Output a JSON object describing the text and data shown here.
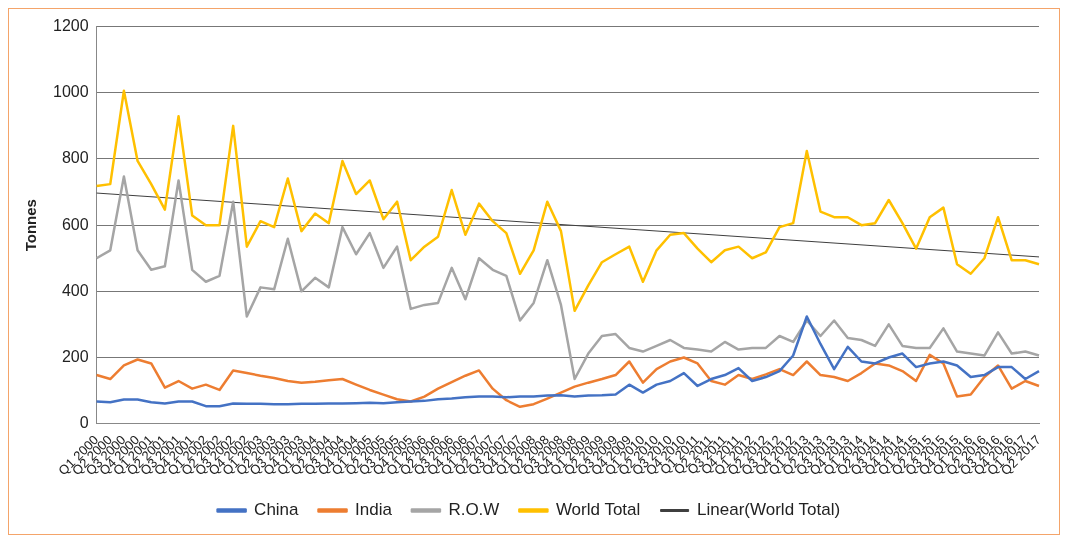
{
  "chart_data": {
    "type": "line",
    "ylabel": "Tonnes",
    "categories": [
      "Q1 2000",
      "Q2 2000",
      "Q3 2000",
      "Q4 2000",
      "Q1 2001",
      "Q2 2001",
      "Q3 2001",
      "Q4 2001",
      "Q1 2002",
      "Q2 2002",
      "Q3 2002",
      "Q4 2002",
      "Q1 2003",
      "Q2 2003",
      "Q3 2003",
      "Q4 2003",
      "Q1 2004",
      "Q2 2004",
      "Q3 2004",
      "Q4 2004",
      "Q1 2005",
      "Q2 2005",
      "Q3 2005",
      "Q4 2005",
      "Q1 2006",
      "Q2 2006",
      "Q3 2006",
      "Q4 2006",
      "Q1 2007",
      "Q2 2007",
      "Q3 2007",
      "Q4 2007",
      "Q1 2008",
      "Q2 2008",
      "Q3 2008",
      "Q4 2008",
      "Q1 2009",
      "Q2 2009",
      "Q3 2009",
      "Q4 2009",
      "Q1 2010",
      "Q2 2010",
      "Q3 2010",
      "Q4 2010",
      "Q1 2011",
      "Q2 2011",
      "Q3 2011",
      "Q4 2011",
      "Q1 2012",
      "Q2 2012",
      "Q3 2012",
      "Q4 2012",
      "Q1 2013",
      "Q2 2013",
      "Q3 2013",
      "Q4 2013",
      "Q1 2014",
      "Q2 2014",
      "Q3 2014",
      "Q4 2014",
      "Q1 2015",
      "Q2 2015",
      "Q3 2015",
      "Q4 2015",
      "Q1 2016",
      "Q2 2016",
      "Q3 2016",
      "Q4 2016",
      "Q1 2017",
      "Q2 2017"
    ],
    "series": [
      {
        "name": "China",
        "color": "#4472c4",
        "values": [
          67,
          65,
          73,
          73,
          65,
          61,
          67,
          67,
          53,
          53,
          61,
          60,
          60,
          59,
          59,
          60,
          60,
          61,
          61,
          62,
          63,
          62,
          65,
          67,
          69,
          74,
          76,
          80,
          82,
          82,
          80,
          82,
          82,
          85,
          86,
          82,
          85,
          86,
          88,
          118,
          94,
          118,
          129,
          153,
          114,
          135,
          147,
          168,
          129,
          141,
          159,
          206,
          324,
          241,
          165,
          232,
          188,
          182,
          200,
          212,
          171,
          182,
          188,
          176,
          141,
          147,
          171,
          171,
          135,
          159
        ]
      },
      {
        "name": "India",
        "color": "#ed7d31",
        "values": [
          147,
          135,
          176,
          194,
          182,
          109,
          129,
          106,
          118,
          102,
          161,
          153,
          145,
          138,
          129,
          124,
          127,
          131,
          135,
          118,
          102,
          88,
          74,
          67,
          82,
          106,
          126,
          145,
          161,
          106,
          71,
          51,
          59,
          76,
          94,
          112,
          124,
          135,
          147,
          188,
          124,
          165,
          188,
          200,
          182,
          129,
          118,
          147,
          135,
          149,
          165,
          147,
          188,
          147,
          141,
          129,
          153,
          182,
          176,
          159,
          129,
          208,
          182,
          82,
          88,
          141,
          176,
          106,
          129,
          114
        ]
      },
      {
        "name": "R.O.W",
        "color": "#a5a5a5",
        "values": [
          500,
          524,
          747,
          524,
          465,
          476,
          735,
          465,
          429,
          447,
          671,
          324,
          412,
          406,
          559,
          400,
          441,
          412,
          594,
          512,
          576,
          471,
          535,
          347,
          359,
          365,
          471,
          376,
          500,
          465,
          447,
          312,
          365,
          494,
          359,
          135,
          212,
          265,
          271,
          229,
          218,
          235,
          253,
          229,
          224,
          218,
          247,
          224,
          229,
          229,
          265,
          247,
          312,
          265,
          312,
          259,
          253,
          235,
          300,
          235,
          229,
          229,
          288,
          218,
          212,
          206,
          276,
          212,
          218,
          206
        ]
      },
      {
        "name": "World Total",
        "color": "#ffc000",
        "values": [
          718,
          724,
          1006,
          794,
          724,
          647,
          929,
          629,
          600,
          600,
          900,
          535,
          612,
          594,
          741,
          582,
          635,
          606,
          794,
          694,
          735,
          618,
          671,
          494,
          535,
          565,
          706,
          571,
          665,
          612,
          576,
          453,
          524,
          671,
          582,
          341,
          418,
          488,
          512,
          535,
          429,
          524,
          571,
          576,
          529,
          488,
          524,
          535,
          500,
          518,
          594,
          606,
          824,
          641,
          624,
          624,
          600,
          606,
          676,
          606,
          529,
          624,
          653,
          482,
          453,
          500,
          624,
          494,
          494,
          482
        ]
      },
      {
        "name": "Linear(World Total)",
        "color": "#3f3f3f",
        "x": [
          "Q1 2000",
          "Q2 2017"
        ],
        "values": [
          697,
          504
        ]
      }
    ],
    "ylim": [
      0,
      1200
    ],
    "yticks": [
      0,
      200,
      400,
      600,
      800,
      1000,
      1200
    ],
    "grid": "y",
    "legend": "bottom",
    "marker": "none",
    "line_style": "solid"
  }
}
